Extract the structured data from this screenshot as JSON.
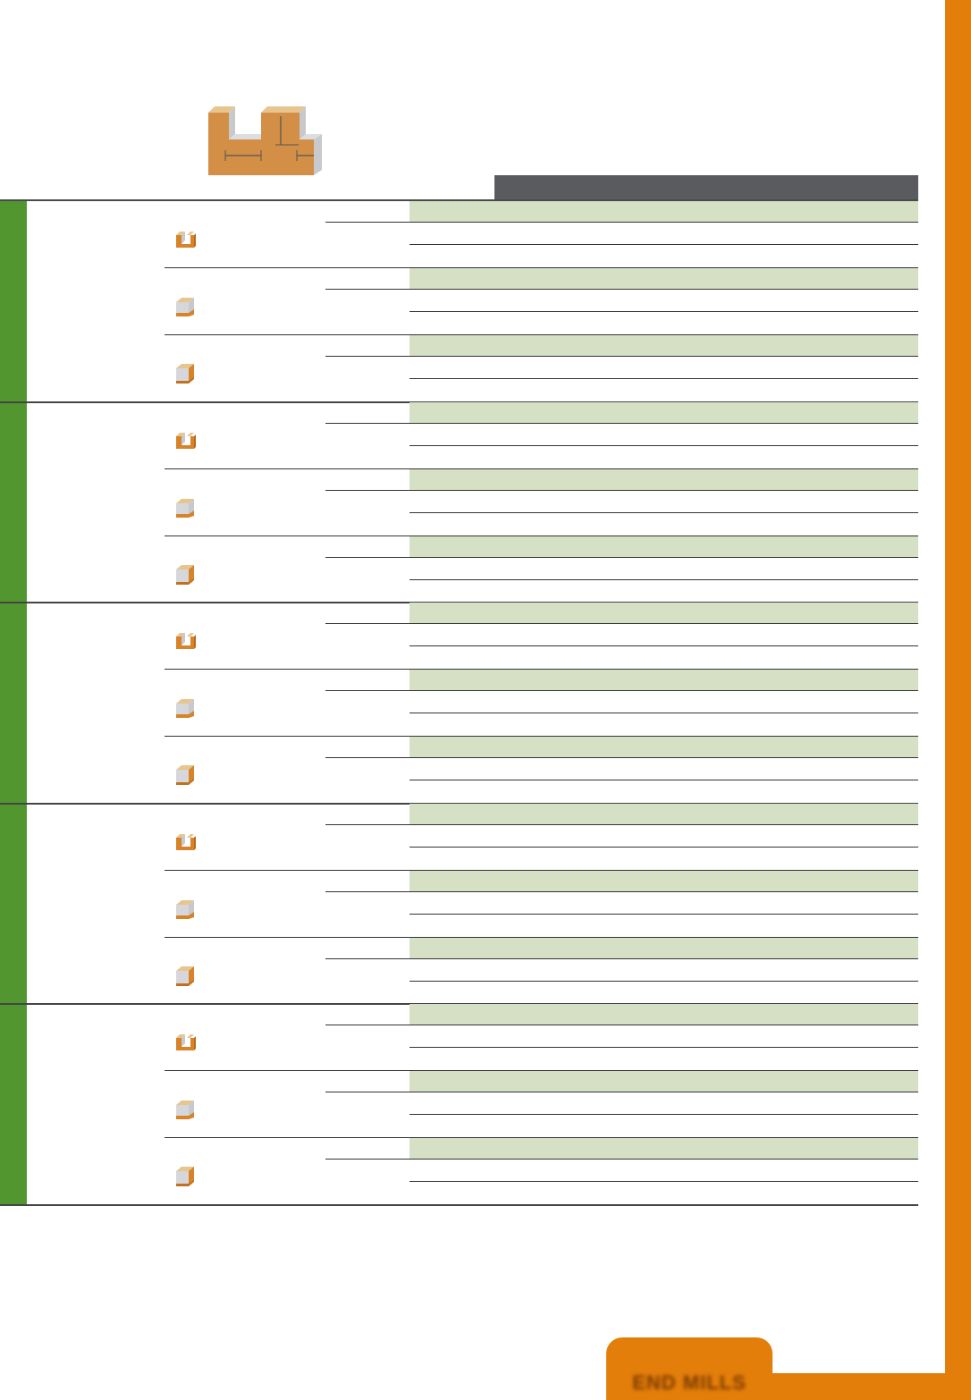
{
  "footer": {
    "tab_label": "END MILLS"
  },
  "colors": {
    "accent_orange": "#e47e0b",
    "green": "#52962f",
    "band": "#d5e0c4",
    "header_dark": "#5a5b5e"
  },
  "groups": [
    {
      "label": "",
      "rows": [
        {
          "icon": "slot-icon"
        },
        {
          "icon": "shoulder-icon"
        },
        {
          "icon": "face-icon"
        }
      ]
    },
    {
      "label": "",
      "rows": [
        {
          "icon": "slot-icon"
        },
        {
          "icon": "shoulder-icon"
        },
        {
          "icon": "face-icon"
        }
      ]
    },
    {
      "label": "",
      "rows": [
        {
          "icon": "slot-icon"
        },
        {
          "icon": "shoulder-icon"
        },
        {
          "icon": "face-icon"
        }
      ]
    },
    {
      "label": "",
      "rows": [
        {
          "icon": "slot-icon"
        },
        {
          "icon": "shoulder-icon"
        },
        {
          "icon": "face-icon"
        }
      ]
    },
    {
      "label": "",
      "rows": [
        {
          "icon": "slot-icon"
        },
        {
          "icon": "shoulder-icon"
        },
        {
          "icon": "face-icon"
        }
      ]
    }
  ]
}
